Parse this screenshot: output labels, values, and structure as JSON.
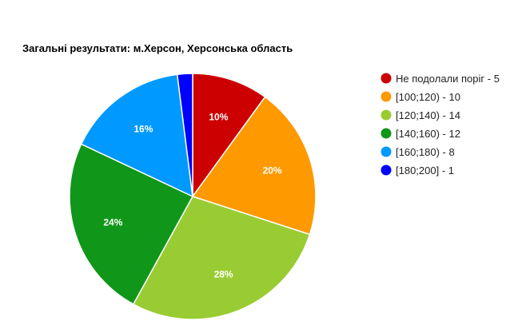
{
  "chart_data": {
    "type": "pie",
    "title": "Загальні результати: м.Херсон, Херсонська область",
    "legend_position": "right",
    "slices": [
      {
        "label": "Не подолали поріг - 5",
        "value": 5,
        "percent_label": "10%",
        "color": "#cc0000"
      },
      {
        "label": "[100;120) - 10",
        "value": 10,
        "percent_label": "20%",
        "color": "#ff9900"
      },
      {
        "label": "[120;140) - 14",
        "value": 14,
        "percent_label": "28%",
        "color": "#99cc33"
      },
      {
        "label": "[140;160) - 12",
        "value": 12,
        "percent_label": "24%",
        "color": "#109618"
      },
      {
        "label": "[160;180) - 8",
        "value": 8,
        "percent_label": "16%",
        "color": "#0099ff"
      },
      {
        "label": "[180;200] - 1",
        "value": 1,
        "percent_label": "",
        "color": "#0000ff"
      }
    ]
  }
}
